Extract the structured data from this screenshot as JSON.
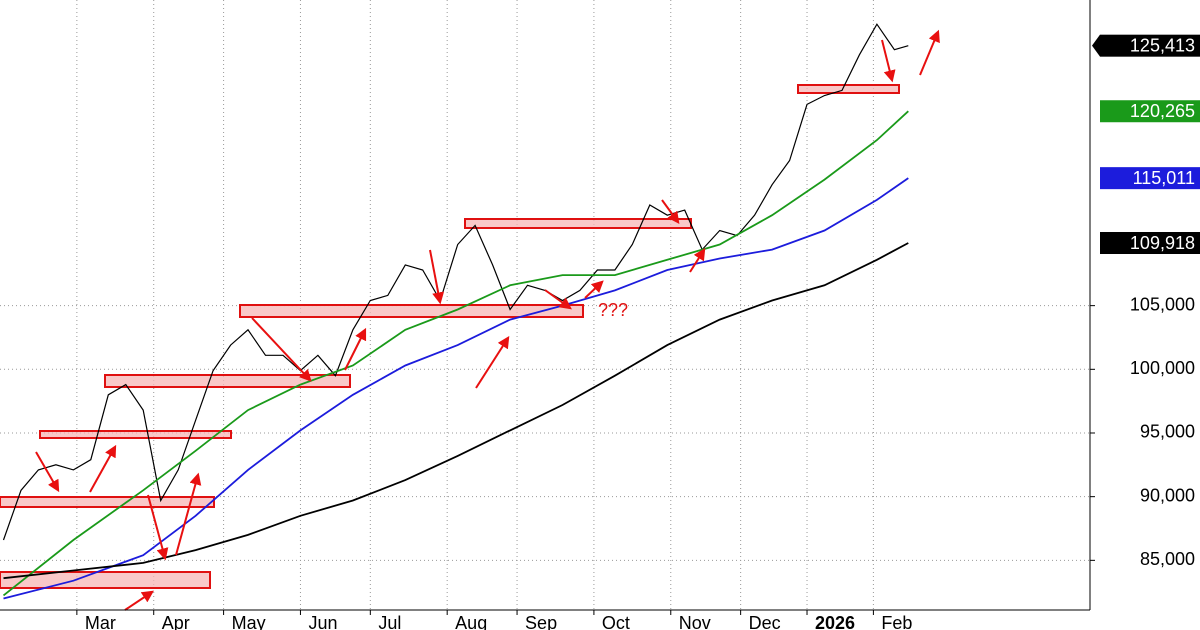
{
  "chart_data": {
    "type": "line",
    "xlim": [
      -1,
      311
    ],
    "ylim": [
      81100,
      129000
    ],
    "grid": true,
    "xticks": [
      {
        "value": 21,
        "label": "Mar"
      },
      {
        "value": 43,
        "label": "Apr"
      },
      {
        "value": 63,
        "label": "May"
      },
      {
        "value": 85,
        "label": "Jun"
      },
      {
        "value": 105,
        "label": "Jul"
      },
      {
        "value": 127,
        "label": "Aug"
      },
      {
        "value": 147,
        "label": "Sep"
      },
      {
        "value": 169,
        "label": "Oct"
      },
      {
        "value": 191,
        "label": "Nov"
      },
      {
        "value": 211,
        "label": "Dec"
      },
      {
        "value": 230,
        "label": "2026"
      },
      {
        "value": 249,
        "label": "Feb"
      }
    ],
    "bold_xticks": [
      10
    ],
    "yticks": [
      {
        "value": 85000,
        "label": "85,000"
      },
      {
        "value": 90000,
        "label": "90,000"
      },
      {
        "value": 95000,
        "label": "95,000"
      },
      {
        "value": 100000,
        "label": "100,000"
      },
      {
        "value": 105000,
        "label": "105,000"
      }
    ],
    "annotations": [
      "???"
    ],
    "series": [
      {
        "color": "#000000",
        "x": [
          0,
          5,
          10,
          15,
          20,
          25,
          30,
          35,
          40,
          45,
          50,
          55,
          60,
          65,
          70,
          75,
          80,
          85,
          90,
          95,
          100,
          105,
          110,
          115,
          120,
          125,
          130,
          135,
          140,
          145,
          150,
          155,
          160,
          165,
          170,
          175,
          180,
          185,
          190,
          195,
          200,
          205,
          210,
          215,
          220,
          225,
          230,
          235,
          240,
          245,
          250,
          255,
          259
        ],
        "values": [
          86600,
          90500,
          92100,
          92500,
          92100,
          92900,
          98000,
          98800,
          96800,
          89700,
          92100,
          96000,
          99900,
          101900,
          103100,
          101100,
          101100,
          99900,
          101100,
          99500,
          103100,
          105400,
          105800,
          108200,
          107800,
          105400,
          109800,
          111300,
          108200,
          104700,
          106600,
          106200,
          105400,
          106200,
          107800,
          107800,
          109800,
          112900,
          112100,
          112500,
          109400,
          110900,
          110500,
          112100,
          114500,
          116400,
          120800,
          121500,
          121900,
          124700,
          127100,
          125100,
          125413
        ],
        "end_label": {
          "value": 125413,
          "label": "125,413"
        }
      },
      {
        "color": "#1a9a1a",
        "x": [
          0,
          20,
          40,
          55,
          70,
          85,
          100,
          115,
          130,
          145,
          160,
          175,
          190,
          205,
          220,
          235,
          250,
          259
        ],
        "values": [
          82250,
          86600,
          90500,
          93600,
          96800,
          98800,
          100300,
          103100,
          104700,
          106600,
          107400,
          107400,
          108600,
          109800,
          112100,
          114900,
          118000,
          120265
        ],
        "end_label": {
          "value": 120265,
          "label": "120,265"
        }
      },
      {
        "color": "#1c1cdc",
        "x": [
          0,
          20,
          40,
          55,
          70,
          85,
          100,
          115,
          130,
          145,
          160,
          175,
          190,
          205,
          220,
          235,
          250,
          259
        ],
        "values": [
          82000,
          83400,
          85400,
          88500,
          92100,
          95200,
          98000,
          100300,
          101900,
          103900,
          105000,
          106200,
          107800,
          108700,
          109400,
          110900,
          113300,
          115011
        ],
        "end_label": {
          "value": 115011,
          "label": "115,011"
        }
      },
      {
        "color": "#000000",
        "x": [
          0,
          20,
          40,
          55,
          70,
          85,
          100,
          115,
          130,
          145,
          160,
          175,
          190,
          205,
          220,
          235,
          250,
          259
        ],
        "values": [
          83600,
          84200,
          84800,
          85800,
          87000,
          88500,
          89700,
          91300,
          93200,
          95200,
          97200,
          99500,
          101900,
          103900,
          105400,
          106600,
          108600,
          109918
        ],
        "end_label": {
          "value": 109918,
          "label": "109,918"
        }
      }
    ]
  }
}
